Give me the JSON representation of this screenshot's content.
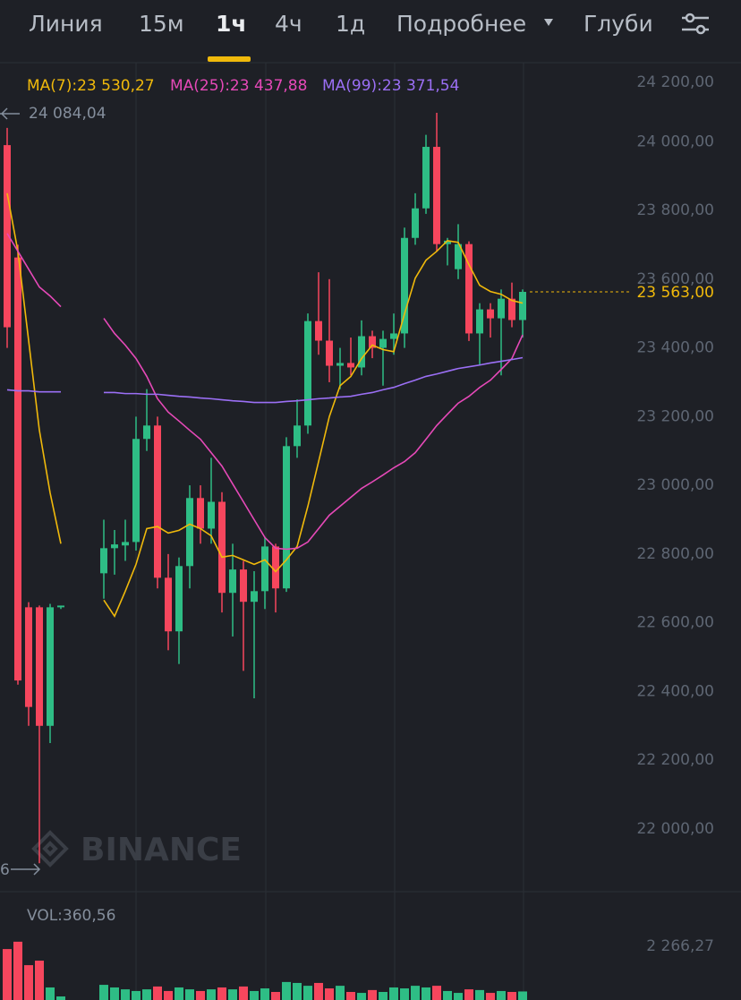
{
  "tabs": [
    "Линия",
    "15м",
    "1ч",
    "4ч",
    "1д",
    "Подробнее",
    "Глуби"
  ],
  "active_tab": 2,
  "chart_data": {
    "type": "candlestick",
    "watermark": "BINANCE",
    "categories": [
      null,
      null,
      null,
      null,
      null,
      null,
      null,
      null,
      null,
      null,
      null,
      null,
      null,
      null,
      null,
      null,
      null,
      null,
      null,
      null,
      null,
      null,
      null,
      null,
      null,
      null,
      null,
      null,
      null,
      null,
      null,
      null,
      null,
      null,
      null,
      null,
      null,
      null,
      null,
      null,
      null,
      null,
      null,
      null,
      null,
      null,
      null,
      null,
      null
    ],
    "open": [
      23990,
      23663,
      22645,
      22645,
      22300,
      22645,
      null,
      null,
      null,
      22744,
      22817,
      22825,
      22835,
      23135,
      23174,
      22731,
      22575,
      22765,
      22963,
      22874,
      22952,
      22687,
      22755,
      22661,
      22692,
      22822,
      22700,
      23114,
      23174,
      23478,
      23421,
      23348,
      23356,
      23343,
      23434,
      23400,
      23426,
      23442,
      23720,
      23806,
      23985,
      23702,
      23629,
      23702,
      23442,
      23512,
      23486,
      23543,
      23481
    ],
    "high": [
      24040,
      23700,
      22660,
      22650,
      22655,
      22650,
      null,
      null,
      null,
      22900,
      22870,
      22900,
      23200,
      23280,
      23200,
      22800,
      22790,
      23000,
      23000,
      23080,
      22980,
      22830,
      22780,
      22750,
      22850,
      22830,
      23140,
      23250,
      23500,
      23620,
      23600,
      23400,
      23430,
      23480,
      23450,
      23450,
      23500,
      23750,
      23850,
      24020,
      24084.04,
      23720,
      23760,
      23710,
      23530,
      23530,
      23570,
      23590,
      23570
    ],
    "low": [
      23400,
      22420,
      22300,
      21900,
      22250,
      22640,
      null,
      null,
      null,
      22670,
      22740,
      22780,
      22810,
      23100,
      22700,
      22520,
      22480,
      22700,
      22830,
      22830,
      22630,
      22560,
      22460,
      22380,
      22640,
      22630,
      22690,
      23080,
      23150,
      23380,
      23300,
      23280,
      23320,
      23320,
      23370,
      23290,
      23380,
      23400,
      23700,
      23790,
      23680,
      23640,
      23600,
      23420,
      23350,
      23430,
      23320,
      23460,
      23430
    ],
    "close": [
      23460,
      22432,
      22355,
      22300,
      22645,
      22650,
      null,
      null,
      null,
      22817,
      22828,
      22835,
      23135,
      23174,
      22731,
      22575,
      22765,
      22963,
      22874,
      22952,
      22687,
      22755,
      22661,
      22692,
      22822,
      22700,
      23114,
      23174,
      23478,
      23421,
      23348,
      23356,
      23343,
      23434,
      23400,
      23426,
      23442,
      23720,
      23806,
      23985,
      23702,
      23712,
      23702,
      23442,
      23512,
      23486,
      23543,
      23481,
      23563
    ],
    "up_color": "#2ebd85",
    "down_color": "#f6465d",
    "series": [
      {
        "name": "MA(7):23 530,27",
        "color": "#f0b90b",
        "values": [
          23850,
          23681,
          23421,
          23160,
          22978,
          22830,
          null,
          null,
          null,
          22666,
          22619,
          22692,
          22770,
          22874,
          22880,
          22861,
          22869,
          22887,
          22874,
          22853,
          22791,
          22796,
          22783,
          22770,
          22783,
          22749,
          22783,
          22822,
          22939,
          23069,
          23200,
          23290,
          23317,
          23369,
          23408,
          23395,
          23389,
          23499,
          23603,
          23655,
          23681,
          23712,
          23707,
          23642,
          23582,
          23564,
          23556,
          23538,
          23530.27
        ]
      },
      {
        "name": "MA(25):23 437,88",
        "color": "#e649b8",
        "values": [
          23733,
          23681,
          23629,
          23577,
          23551,
          23520,
          null,
          null,
          null,
          23486,
          23442,
          23408,
          23369,
          23317,
          23252,
          23213,
          23187,
          23160,
          23134,
          23095,
          23056,
          23004,
          22952,
          22900,
          22848,
          22817,
          22814,
          22817,
          22835,
          22874,
          22913,
          22939,
          22965,
          22991,
          23010,
          23030,
          23051,
          23069,
          23095,
          23134,
          23174,
          23207,
          23239,
          23259,
          23285,
          23306,
          23337,
          23369,
          23437.88
        ]
      },
      {
        "name": "MA(99):23 371,54",
        "color": "#9b6ff5",
        "values": [
          23278,
          23275,
          23275,
          23272,
          23272,
          23272,
          null,
          null,
          null,
          23270,
          23270,
          23267,
          23267,
          23265,
          23265,
          23262,
          23259,
          23257,
          23254,
          23252,
          23249,
          23246,
          23244,
          23241,
          23241,
          23241,
          23244,
          23246,
          23249,
          23252,
          23254,
          23257,
          23259,
          23265,
          23270,
          23278,
          23285,
          23296,
          23306,
          23317,
          23324,
          23332,
          23340,
          23345,
          23350,
          23356,
          23361,
          23366,
          23371.54
        ]
      }
    ],
    "ylim": [
      21820,
      24230
    ],
    "yticks": [
      {
        "value": 22000,
        "label": "22 000,00"
      },
      {
        "value": 22200,
        "label": "22 200,00"
      },
      {
        "value": 22400,
        "label": "22 400,00"
      },
      {
        "value": 22600,
        "label": "22 600,00"
      },
      {
        "value": 22800,
        "label": "22 800,00"
      },
      {
        "value": 23000,
        "label": "23 000,00"
      },
      {
        "value": 23200,
        "label": "23 200,00"
      },
      {
        "value": 23400,
        "label": "23 400,00"
      },
      {
        "value": 23600,
        "label": "23 600,00"
      },
      {
        "value": 23800,
        "label": "23 800,00"
      },
      {
        "value": 24000,
        "label": "24 000,00"
      },
      {
        "value": 24200,
        "label": "24 200,00"
      }
    ],
    "current_price": {
      "value": 23563,
      "label": "23 563,00"
    },
    "high_mark": {
      "value": 24084.04,
      "label": "24 084,04"
    },
    "low_mark_label": "6",
    "volume": {
      "title": "VOL:360,56",
      "values": [
        2150,
        2460,
        1470,
        1660,
        530,
        150,
        null,
        null,
        null,
        640,
        530,
        450,
        380,
        450,
        570,
        380,
        530,
        450,
        380,
        450,
        530,
        450,
        570,
        380,
        490,
        340,
        760,
        720,
        600,
        720,
        490,
        600,
        340,
        300,
        420,
        340,
        530,
        490,
        600,
        530,
        600,
        380,
        300,
        450,
        420,
        300,
        380,
        340,
        360.56
      ],
      "ylim": [
        0,
        4420
      ],
      "yticks": [
        {
          "value": 2266.27,
          "label": "2 266,27"
        }
      ]
    }
  }
}
